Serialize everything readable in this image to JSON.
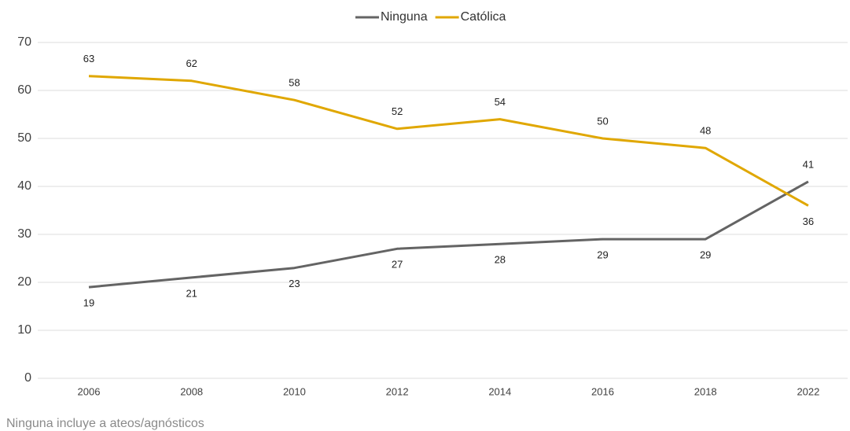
{
  "chart_data": {
    "type": "line",
    "categories": [
      "2006",
      "2008",
      "2010",
      "2012",
      "2014",
      "2016",
      "2018",
      "2022"
    ],
    "series": [
      {
        "name": "Ninguna",
        "color": "#646464",
        "values": [
          19,
          21,
          23,
          27,
          28,
          29,
          29,
          41
        ]
      },
      {
        "name": "Católica",
        "color": "#e0a700",
        "values": [
          63,
          62,
          58,
          52,
          54,
          50,
          48,
          36
        ]
      }
    ],
    "ylim": [
      0,
      70
    ],
    "yticks": [
      0,
      10,
      20,
      30,
      40,
      50,
      60,
      70
    ],
    "grid": true,
    "legend": "top",
    "note": "Ninguna incluye a ateos/agnósticos"
  }
}
